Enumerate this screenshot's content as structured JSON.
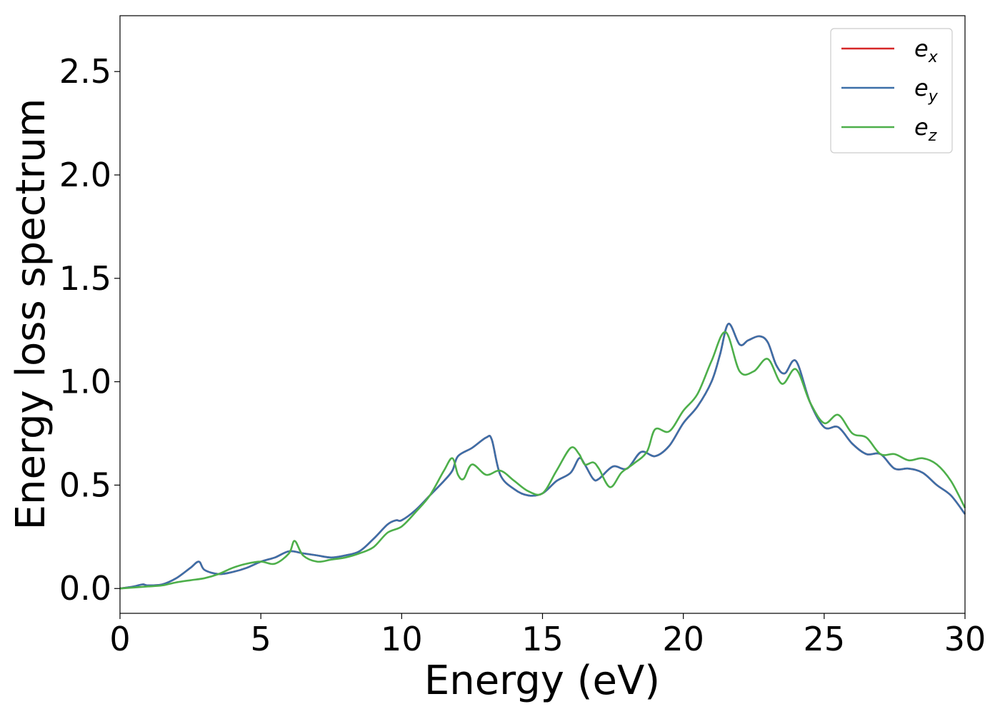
{
  "chart_data": {
    "type": "line",
    "xlabel": "Energy (eV)",
    "ylabel": "Energy loss spectrum",
    "xlim": [
      0,
      30
    ],
    "ylim": [
      -0.12,
      2.77
    ],
    "x_ticks": [
      0,
      5,
      10,
      15,
      20,
      25,
      30
    ],
    "x_tick_labels": [
      "0",
      "5",
      "10",
      "15",
      "20",
      "25",
      "30"
    ],
    "y_ticks": [
      0.0,
      0.5,
      1.0,
      1.5,
      2.0,
      2.5
    ],
    "y_tick_labels": [
      "0.0",
      "0.5",
      "1.0",
      "1.5",
      "2.0",
      "2.5"
    ],
    "grid": false,
    "legend_position": "top-right",
    "series": [
      {
        "name": "e_x",
        "legend_base": "e",
        "legend_sub": "x",
        "color": "#d62728",
        "x": [
          0,
          0.5,
          0.8,
          1,
          1.5,
          2,
          2.5,
          2.8,
          3,
          3.5,
          4,
          4.5,
          5,
          5.5,
          6,
          6.5,
          7,
          7.5,
          8,
          8.5,
          9,
          9.5,
          9.8,
          10,
          10.5,
          11,
          11.5,
          11.8,
          12,
          12.5,
          13,
          13.2,
          13.5,
          14,
          14.5,
          15,
          15.5,
          16,
          16.3,
          16.5,
          16.8,
          17,
          17.5,
          18,
          18.5,
          19,
          19.5,
          20,
          20.5,
          21,
          21.3,
          21.6,
          22,
          22.3,
          22.7,
          23,
          23.3,
          23.6,
          24,
          24.5,
          25,
          25.5,
          26,
          26.5,
          27,
          27.5,
          28,
          28.5,
          29,
          29.5,
          30
        ],
        "y": [
          0,
          0.01,
          0.02,
          0.015,
          0.02,
          0.05,
          0.1,
          0.13,
          0.09,
          0.07,
          0.08,
          0.1,
          0.13,
          0.15,
          0.18,
          0.17,
          0.16,
          0.15,
          0.16,
          0.18,
          0.24,
          0.31,
          0.33,
          0.33,
          0.38,
          0.45,
          0.52,
          0.57,
          0.64,
          0.68,
          0.73,
          0.72,
          0.55,
          0.48,
          0.45,
          0.46,
          0.52,
          0.56,
          0.63,
          0.6,
          0.53,
          0.53,
          0.59,
          0.58,
          0.66,
          0.64,
          0.69,
          0.8,
          0.88,
          1.0,
          1.13,
          1.28,
          1.18,
          1.2,
          1.22,
          1.19,
          1.08,
          1.04,
          1.1,
          0.9,
          0.78,
          0.78,
          0.7,
          0.65,
          0.65,
          0.58,
          0.58,
          0.56,
          0.5,
          0.45,
          0.36
        ]
      },
      {
        "name": "e_y",
        "legend_base": "e",
        "legend_sub": "y",
        "color": "#3c6fa8",
        "x": [
          0,
          0.5,
          0.8,
          1,
          1.5,
          2,
          2.5,
          2.8,
          3,
          3.5,
          4,
          4.5,
          5,
          5.5,
          6,
          6.5,
          7,
          7.5,
          8,
          8.5,
          9,
          9.5,
          9.8,
          10,
          10.5,
          11,
          11.5,
          11.8,
          12,
          12.5,
          13,
          13.2,
          13.5,
          14,
          14.5,
          15,
          15.5,
          16,
          16.3,
          16.5,
          16.8,
          17,
          17.5,
          18,
          18.5,
          19,
          19.5,
          20,
          20.5,
          21,
          21.3,
          21.6,
          22,
          22.3,
          22.7,
          23,
          23.3,
          23.6,
          24,
          24.5,
          25,
          25.5,
          26,
          26.5,
          27,
          27.5,
          28,
          28.5,
          29,
          29.5,
          30
        ],
        "y": [
          0,
          0.01,
          0.02,
          0.015,
          0.02,
          0.05,
          0.1,
          0.13,
          0.09,
          0.07,
          0.08,
          0.1,
          0.13,
          0.15,
          0.18,
          0.17,
          0.16,
          0.15,
          0.16,
          0.18,
          0.24,
          0.31,
          0.33,
          0.33,
          0.38,
          0.45,
          0.52,
          0.57,
          0.64,
          0.68,
          0.73,
          0.72,
          0.55,
          0.48,
          0.45,
          0.46,
          0.52,
          0.56,
          0.63,
          0.6,
          0.53,
          0.53,
          0.59,
          0.58,
          0.66,
          0.64,
          0.69,
          0.8,
          0.88,
          1.0,
          1.13,
          1.28,
          1.18,
          1.2,
          1.22,
          1.19,
          1.08,
          1.04,
          1.1,
          0.9,
          0.78,
          0.78,
          0.7,
          0.65,
          0.65,
          0.58,
          0.58,
          0.56,
          0.5,
          0.45,
          0.36
        ]
      },
      {
        "name": "e_z",
        "legend_base": "e",
        "legend_sub": "z",
        "color": "#4daf4a",
        "x": [
          0,
          0.5,
          1,
          1.5,
          2,
          2.5,
          3,
          3.5,
          4,
          4.5,
          5,
          5.5,
          6,
          6.2,
          6.5,
          7,
          7.5,
          8,
          8.5,
          9,
          9.5,
          10,
          10.5,
          11,
          11.5,
          11.8,
          12,
          12.2,
          12.5,
          13,
          13.5,
          14,
          14.5,
          15,
          15.5,
          16,
          16.3,
          16.5,
          16.8,
          17,
          17.4,
          17.8,
          18.2,
          18.7,
          19,
          19.5,
          20,
          20.5,
          21,
          21.5,
          22,
          22.5,
          23,
          23.5,
          24,
          24.5,
          25,
          25.5,
          26,
          26.5,
          27,
          27.5,
          28,
          28.5,
          29,
          29.5,
          30
        ],
        "y": [
          0,
          0.005,
          0.01,
          0.015,
          0.03,
          0.04,
          0.05,
          0.07,
          0.1,
          0.12,
          0.13,
          0.12,
          0.17,
          0.23,
          0.16,
          0.13,
          0.14,
          0.15,
          0.17,
          0.2,
          0.27,
          0.3,
          0.37,
          0.45,
          0.57,
          0.63,
          0.55,
          0.53,
          0.6,
          0.55,
          0.57,
          0.52,
          0.47,
          0.46,
          0.57,
          0.68,
          0.65,
          0.6,
          0.61,
          0.58,
          0.49,
          0.56,
          0.6,
          0.66,
          0.77,
          0.76,
          0.86,
          0.94,
          1.1,
          1.24,
          1.05,
          1.05,
          1.11,
          0.99,
          1.06,
          0.9,
          0.8,
          0.84,
          0.75,
          0.73,
          0.65,
          0.65,
          0.62,
          0.63,
          0.6,
          0.52,
          0.39
        ]
      }
    ]
  }
}
